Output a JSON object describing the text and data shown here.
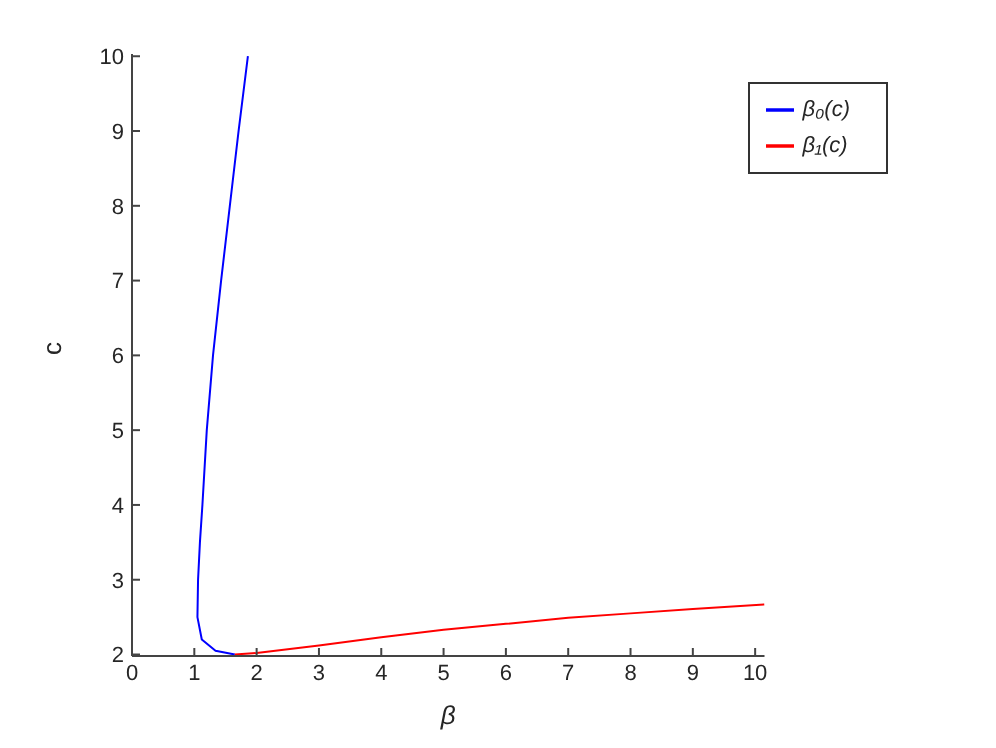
{
  "chart_data": {
    "type": "line",
    "xlabel": "β",
    "ylabel": "c",
    "xlim": [
      0,
      10.15
    ],
    "ylim": [
      1.98,
      10.03
    ],
    "xticks": [
      0,
      1,
      2,
      3,
      4,
      5,
      6,
      7,
      8,
      9,
      10
    ],
    "yticks": [
      2,
      3,
      4,
      5,
      6,
      7,
      8,
      9,
      10
    ],
    "grid": false,
    "legend": "top right",
    "marker": "none",
    "line_style": "solid",
    "series": [
      {
        "name": "β₀(c)",
        "color": "#0000ff",
        "x": [
          1.65,
          1.34,
          1.12,
          1.05,
          1.06,
          1.09,
          1.13,
          1.2,
          1.3,
          1.43,
          1.57,
          1.71,
          1.86
        ],
        "values": [
          2.0,
          2.05,
          2.2,
          2.5,
          3,
          3.5,
          4,
          5,
          6,
          7,
          8,
          9,
          10
        ]
      },
      {
        "name": "β₁(c)",
        "color": "#ff0000",
        "x": [
          1.65,
          2,
          3,
          4,
          5,
          6,
          7,
          8,
          9,
          10.15
        ],
        "values": [
          2.0,
          2.02,
          2.12,
          2.23,
          2.33,
          2.41,
          2.49,
          2.55,
          2.61,
          2.67
        ]
      }
    ]
  }
}
